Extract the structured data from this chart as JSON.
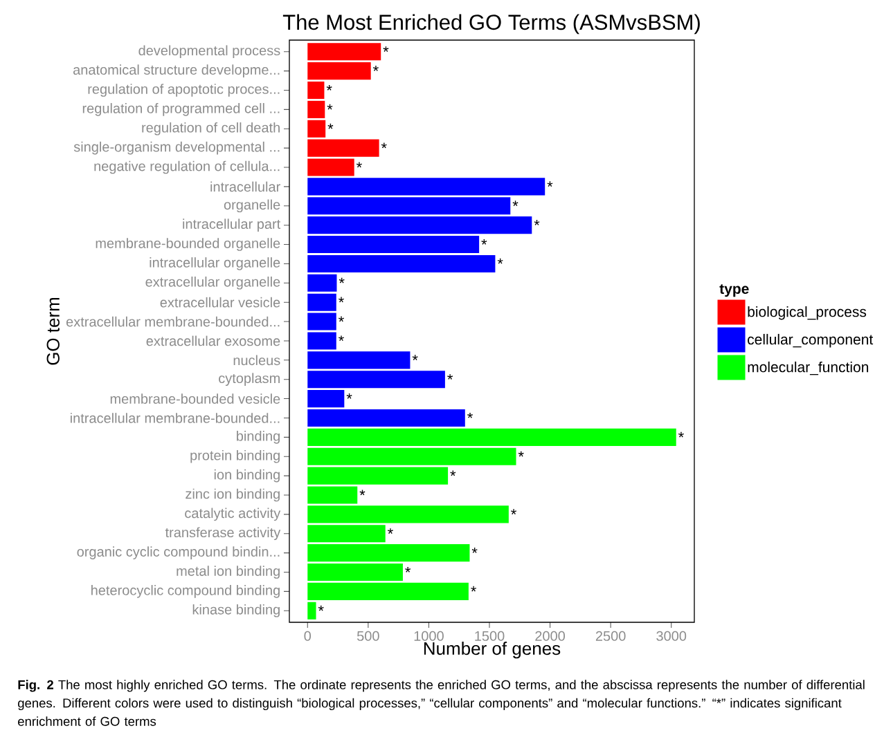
{
  "chart_data": {
    "type": "bar",
    "orientation": "horizontal",
    "title": "The Most Enriched GO Terms (ASMvsBSM)",
    "xlabel": "Number of genes",
    "ylabel": "GO term",
    "legend_title": "type",
    "legend": "right",
    "categories": [
      "developmental process",
      "anatomical structure developme...",
      "regulation of apoptotic proces...",
      "regulation of programmed cell ...",
      "regulation of cell death",
      "single-organism developmental ...",
      "negative regulation of cellula...",
      "intracellular",
      "organelle",
      "intracellular part",
      "membrane-bounded organelle",
      "intracellular organelle",
      "extracellular organelle",
      "extracellular vesicle",
      "extracellular membrane-bounded...",
      "extracellular exosome",
      "nucleus",
      "cytoplasm",
      "membrane-bounded vesicle",
      "intracellular membrane-bounded...",
      "binding",
      "protein binding",
      "ion binding",
      "zinc ion binding",
      "catalytic activity",
      "transferase activity",
      "organic cyclic compound bindin...",
      "metal ion binding",
      "heterocyclic compound binding",
      "kinase binding"
    ],
    "series": [
      {
        "name": "biological_process",
        "color": "#ff0000",
        "values": [
          605,
          522,
          138,
          143,
          148,
          590,
          385,
          null,
          null,
          null,
          null,
          null,
          null,
          null,
          null,
          null,
          null,
          null,
          null,
          null,
          null,
          null,
          null,
          null,
          null,
          null,
          null,
          null,
          null,
          null
        ],
        "value_labels": [
          "*",
          "*",
          "*",
          "*",
          "*",
          "*",
          "*",
          null,
          null,
          null,
          null,
          null,
          null,
          null,
          null,
          null,
          null,
          null,
          null,
          null,
          null,
          null,
          null,
          null,
          null,
          null,
          null,
          null,
          null,
          null
        ]
      },
      {
        "name": "cellular_component",
        "color": "#0000ff",
        "values": [
          null,
          null,
          null,
          null,
          null,
          null,
          null,
          1958,
          1673,
          1850,
          1415,
          1548,
          241,
          237,
          237,
          237,
          846,
          1134,
          303,
          1299,
          null,
          null,
          null,
          null,
          null,
          null,
          null,
          null,
          null,
          null
        ],
        "value_labels": [
          null,
          null,
          null,
          null,
          null,
          null,
          null,
          "*",
          "*",
          "*",
          "*",
          "*",
          "*",
          "*",
          "*",
          "*",
          "*",
          "*",
          "*",
          "*",
          null,
          null,
          null,
          null,
          null,
          null,
          null,
          null,
          null,
          null
        ]
      },
      {
        "name": "molecular_function",
        "color": "#00ff00",
        "values": [
          null,
          null,
          null,
          null,
          null,
          null,
          null,
          null,
          null,
          null,
          null,
          null,
          null,
          null,
          null,
          null,
          null,
          null,
          null,
          null,
          3040,
          1720,
          1158,
          411,
          1659,
          642,
          1337,
          786,
          1328,
          70
        ],
        "value_labels": [
          null,
          null,
          null,
          null,
          null,
          null,
          null,
          null,
          null,
          null,
          null,
          null,
          null,
          null,
          null,
          null,
          null,
          null,
          null,
          null,
          "*",
          "*",
          "*",
          "*",
          "*",
          "*",
          "*",
          "*",
          "*",
          "*"
        ]
      }
    ],
    "xlim": [
      -150,
      3190
    ],
    "xticks": [
      0,
      500,
      1000,
      1500,
      2000,
      2500,
      3000
    ],
    "annotations": [
      "**Fig. 2** The most highly enriched GO terms. The ordinate represents the enriched GO terms, and the abscissa represents the number of differential genes. Different colors were used to distinguish “biological processes,” “cellular components” and “molecular functions.” “*” indicates significant enrichment of GO terms"
    ]
  }
}
